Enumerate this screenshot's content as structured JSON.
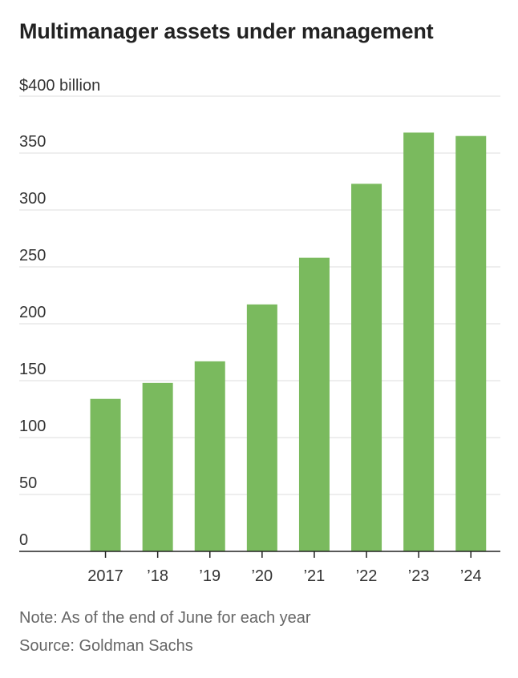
{
  "chart_data": {
    "type": "bar",
    "title": "Multimanager assets under management",
    "ylabel": "$400 billion",
    "xlabel": "",
    "categories": [
      "2017",
      "’18",
      "’19",
      "’20",
      "’21",
      "’22",
      "’23",
      "’24"
    ],
    "values": [
      134,
      148,
      167,
      217,
      258,
      323,
      368,
      365
    ],
    "ylim": [
      0,
      400
    ],
    "yticks": [
      0,
      50,
      100,
      150,
      200,
      250,
      300,
      350
    ],
    "ytick_labels": [
      "0",
      "50",
      "100",
      "150",
      "200",
      "250",
      "300",
      "350"
    ],
    "grid": true,
    "bar_color": "#7aba5e",
    "grid_color": "#dddddd",
    "axis_color": "#222222",
    "tick_label_color": "#333333"
  },
  "note": "Note: As of the end of June for each year",
  "source": "Source: Goldman Sachs"
}
